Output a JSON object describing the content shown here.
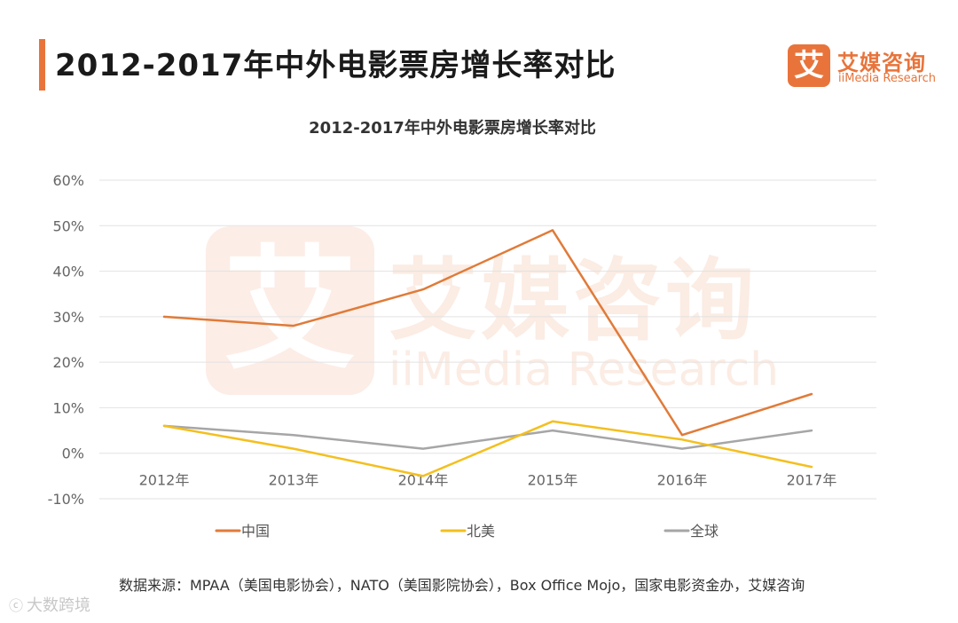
{
  "header": {
    "title": "2012-2017年中外电影票房增长率对比"
  },
  "brand": {
    "logo_char": "艾",
    "name": "艾媒咨询",
    "sub": "iiMedia Research"
  },
  "watermark": {
    "logo_char": "艾",
    "name": "艾媒咨询",
    "sub": "iiMedia Research"
  },
  "colors": {
    "accent": "#e8743b",
    "china": "#e07b39",
    "north_america": "#f4bf1e",
    "global": "#a6a6a6",
    "grid": "#e2e2e2",
    "axis_text": "#666666"
  },
  "chart_data": {
    "type": "line",
    "title": "2012-2017年中外电影票房增长率对比",
    "xlabel": "",
    "ylabel": "",
    "categories": [
      "2012年",
      "2013年",
      "2014年",
      "2015年",
      "2016年",
      "2017年"
    ],
    "y_ticks": [
      60,
      50,
      40,
      30,
      20,
      10,
      0,
      -10
    ],
    "y_tick_labels": [
      "60%",
      "50%",
      "40%",
      "30%",
      "20%",
      "10%",
      "0%",
      "-10%"
    ],
    "ylim": [
      -10,
      60
    ],
    "grid": true,
    "legend_position": "bottom",
    "series": [
      {
        "name": "中国",
        "color": "#e07b39",
        "values": [
          30,
          28,
          36,
          49,
          4,
          13
        ]
      },
      {
        "name": "北美",
        "color": "#f4bf1e",
        "values": [
          6,
          1,
          -5,
          7,
          3,
          -3
        ]
      },
      {
        "name": "全球",
        "color": "#a6a6a6",
        "values": [
          6,
          4,
          1,
          5,
          1,
          5
        ]
      }
    ]
  },
  "footer": {
    "source": "数据来源：MPAA（美国电影协会），NATO（美国影院协会），Box Office Mojo，国家电影资金办，艾媒咨询"
  },
  "corner_mark": {
    "glyph": "ⓒ",
    "text": "大数跨境"
  }
}
